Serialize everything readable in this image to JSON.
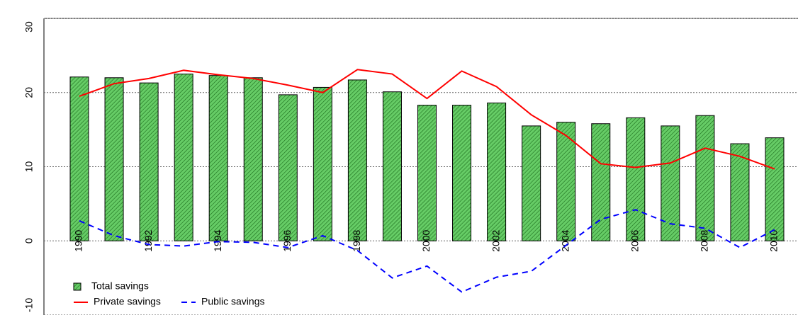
{
  "chart_data": {
    "type": "bar-line",
    "categories": [
      "1990",
      null,
      "1992",
      null,
      "1994",
      null,
      "1996",
      null,
      "1998",
      null,
      "2000",
      null,
      "2002",
      null,
      "2004",
      null,
      "2006",
      null,
      "2008",
      null,
      "2010"
    ],
    "series": [
      {
        "name": "Total savings",
        "type": "bar",
        "color": "#66cc66",
        "values": [
          22.1,
          22.0,
          21.3,
          22.5,
          22.3,
          22.0,
          19.7,
          20.7,
          21.7,
          20.1,
          18.3,
          18.3,
          18.6,
          15.5,
          16.0,
          15.8,
          16.6,
          15.5,
          16.9,
          13.1,
          13.9
        ]
      },
      {
        "name": "Private savings",
        "type": "line",
        "color": "#ff0000",
        "values": [
          19.5,
          21.2,
          21.9,
          23.0,
          22.4,
          21.9,
          21.0,
          20.0,
          23.1,
          22.5,
          19.2,
          22.9,
          20.8,
          17.0,
          14.2,
          10.4,
          9.9,
          10.5,
          12.5,
          11.4,
          9.7
        ]
      },
      {
        "name": "Public savings",
        "type": "line",
        "dashed": true,
        "color": "#0000ff",
        "values": [
          2.7,
          0.7,
          -0.5,
          -0.7,
          -0.1,
          -0.2,
          -0.9,
          0.7,
          -1.3,
          -5.0,
          -3.4,
          -6.9,
          -4.9,
          -4.1,
          -0.6,
          2.9,
          4.2,
          2.3,
          1.7,
          -0.9,
          1.5
        ]
      }
    ],
    "ylim": [
      -10,
      30
    ],
    "yticks": [
      -10,
      0,
      10,
      20,
      30
    ],
    "grid": true,
    "legend": "bottom-left"
  }
}
